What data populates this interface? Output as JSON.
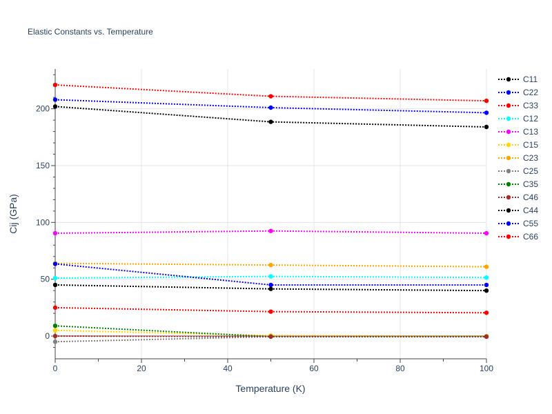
{
  "chart_data": {
    "type": "line",
    "title": "Elastic Constants vs. Temperature",
    "xlabel": "Temperature (K)",
    "ylabel": "Cij (GPa)",
    "xlim": [
      0,
      100
    ],
    "ylim": [
      -20,
      235
    ],
    "xticks": [
      0,
      20,
      40,
      60,
      80,
      100
    ],
    "yticks": [
      0,
      50,
      100,
      150,
      200
    ],
    "grid": true,
    "legend_position": "right",
    "x": [
      0,
      50,
      100
    ],
    "series": [
      {
        "name": "C11",
        "color": "#000000",
        "values": [
          202,
          188.5,
          184
        ]
      },
      {
        "name": "C22",
        "color": "#0000ff",
        "values": [
          208,
          201,
          196.5
        ]
      },
      {
        "name": "C33",
        "color": "#ff0000",
        "values": [
          221,
          211,
          207
        ]
      },
      {
        "name": "C12",
        "color": "#00ffff",
        "values": [
          51,
          52.5,
          51.5
        ]
      },
      {
        "name": "C13",
        "color": "#ff00ff",
        "values": [
          90.5,
          92.5,
          90.5
        ]
      },
      {
        "name": "C15",
        "color": "#ffd700",
        "values": [
          5,
          0.5,
          0
        ]
      },
      {
        "name": "C23",
        "color": "#ffa500",
        "values": [
          64,
          62.5,
          61
        ]
      },
      {
        "name": "C25",
        "color": "#808080",
        "values": [
          -5,
          -0.5,
          -0.5
        ]
      },
      {
        "name": "C35",
        "color": "#008000",
        "values": [
          9,
          -0.5,
          -0.5
        ]
      },
      {
        "name": "C46",
        "color": "#a52a2a",
        "values": [
          0,
          -0.5,
          -0.5
        ]
      },
      {
        "name": "C44",
        "color": "#000000",
        "values": [
          45,
          41.5,
          40
        ]
      },
      {
        "name": "C55",
        "color": "#0000ff",
        "values": [
          63.5,
          45,
          45
        ]
      },
      {
        "name": "C66",
        "color": "#ff0000",
        "values": [
          25,
          21.5,
          20.5
        ]
      }
    ]
  }
}
